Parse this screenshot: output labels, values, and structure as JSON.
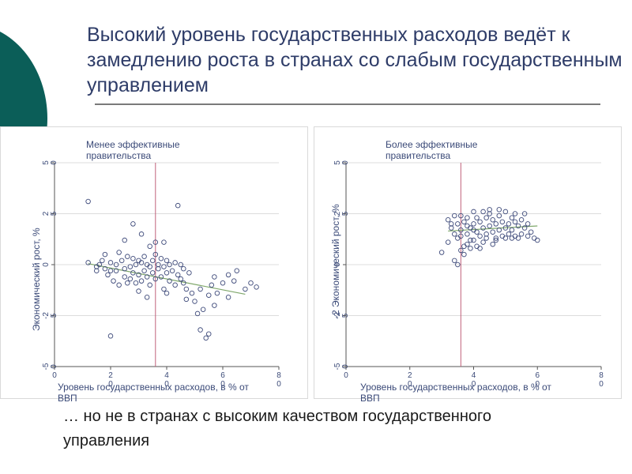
{
  "slide": {
    "title": "Высокий уровень государственных расходов ведёт к замедлению роста в странах со слабым государственным управлением",
    "footer": "… но не в странах с высоким качеством государственного управления",
    "colors": {
      "title": "#2e3c68",
      "teal_dark": "#0b5e58",
      "teal_light": "#8fc7c3",
      "marker": "#3e4a7a",
      "vline": "#c0607a",
      "fit_line": "#7ea76a"
    }
  },
  "chart_data": [
    {
      "type": "scatter",
      "panel_label": "Менее эффективные\nправительства",
      "xlabel": "Уровень государственных расходов, в % от\nВВП",
      "ylabel": "Экономический рост,\n%",
      "x_ticks": [
        "0",
        "2\n0",
        "4\n0",
        "6\n0",
        "8\n0"
      ],
      "y_ticks": [
        "-5\n0",
        "-2\n5",
        "0",
        "2\n5",
        "5\n0"
      ],
      "xlim": [
        0,
        80
      ],
      "ylim": [
        -50,
        50
      ],
      "grid": true,
      "vline_x": 36,
      "fit_line": [
        [
          12,
          0.5
        ],
        [
          68,
          -14.5
        ]
      ],
      "points": [
        [
          12,
          31
        ],
        [
          12,
          1
        ],
        [
          15,
          -1
        ],
        [
          16,
          0
        ],
        [
          17,
          2
        ],
        [
          18,
          -2
        ],
        [
          19,
          -5
        ],
        [
          20,
          1
        ],
        [
          20,
          -3
        ],
        [
          21,
          -8
        ],
        [
          22,
          0
        ],
        [
          22,
          -3
        ],
        [
          23,
          -10
        ],
        [
          24,
          2
        ],
        [
          25,
          -2
        ],
        [
          25,
          -6
        ],
        [
          26,
          4
        ],
        [
          27,
          -1
        ],
        [
          27,
          -7
        ],
        [
          28,
          3
        ],
        [
          28,
          -4
        ],
        [
          29,
          0
        ],
        [
          29,
          -9
        ],
        [
          30,
          2
        ],
        [
          30,
          -5
        ],
        [
          31,
          1
        ],
        [
          31,
          -8
        ],
        [
          32,
          4
        ],
        [
          32,
          -3
        ],
        [
          33,
          0
        ],
        [
          33,
          -6
        ],
        [
          34,
          -1
        ],
        [
          34,
          -10
        ],
        [
          35,
          2
        ],
        [
          35,
          -4
        ],
        [
          36,
          5
        ],
        [
          36,
          -7
        ],
        [
          37,
          0
        ],
        [
          37,
          -2
        ],
        [
          38,
          3
        ],
        [
          38,
          -6
        ],
        [
          39,
          -1
        ],
        [
          39,
          -12
        ],
        [
          40,
          2
        ],
        [
          40,
          -4
        ],
        [
          41,
          0
        ],
        [
          41,
          -8
        ],
        [
          42,
          -3
        ],
        [
          43,
          1
        ],
        [
          43,
          -10
        ],
        [
          44,
          -5
        ],
        [
          45,
          0
        ],
        [
          45,
          -7
        ],
        [
          46,
          -9
        ],
        [
          46,
          -2
        ],
        [
          47,
          -12
        ],
        [
          48,
          -4
        ],
        [
          49,
          -14
        ],
        [
          50,
          -18
        ],
        [
          51,
          -24
        ],
        [
          52,
          -32
        ],
        [
          53,
          -22
        ],
        [
          54,
          -36
        ],
        [
          55,
          -34
        ],
        [
          55,
          -15
        ],
        [
          56,
          -10
        ],
        [
          57,
          -20
        ],
        [
          58,
          -14
        ],
        [
          60,
          -9
        ],
        [
          62,
          -16
        ],
        [
          64,
          -8
        ],
        [
          68,
          -12
        ],
        [
          70,
          -9
        ],
        [
          72,
          -11
        ],
        [
          20,
          -35
        ],
        [
          23,
          6
        ],
        [
          30,
          -13
        ],
        [
          33,
          -16
        ],
        [
          44,
          29
        ],
        [
          28,
          20
        ],
        [
          39,
          11
        ],
        [
          25,
          12
        ],
        [
          15,
          -3
        ],
        [
          18,
          5
        ],
        [
          36,
          11
        ],
        [
          26,
          -9
        ],
        [
          40,
          -14
        ],
        [
          47,
          -17
        ],
        [
          52,
          -12
        ],
        [
          57,
          -6
        ],
        [
          62,
          -5
        ],
        [
          65,
          -3
        ],
        [
          31,
          15
        ],
        [
          34,
          9
        ]
      ]
    },
    {
      "type": "scatter",
      "panel_label": "Более эффективные\nправительства",
      "xlabel": "Уровень государственных расходов, в % от\nВВП",
      "ylabel": "-2 Экономический рост, %",
      "x_ticks": [
        "0",
        "2\n0",
        "4\n0",
        "6\n0",
        "8\n0"
      ],
      "y_ticks": [
        "-5\n0",
        "-2\n5",
        "0",
        "2\n5",
        "5\n0"
      ],
      "xlim": [
        0,
        80
      ],
      "ylim": [
        -50,
        50
      ],
      "grid": true,
      "vline_x": 36,
      "fit_line": [
        [
          32,
          16.5
        ],
        [
          60,
          19
        ]
      ],
      "points": [
        [
          30,
          6
        ],
        [
          32,
          11
        ],
        [
          32,
          22
        ],
        [
          33,
          18
        ],
        [
          34,
          15
        ],
        [
          34,
          24
        ],
        [
          35,
          20
        ],
        [
          35,
          13
        ],
        [
          36,
          17
        ],
        [
          36,
          24
        ],
        [
          37,
          21
        ],
        [
          37,
          9
        ],
        [
          38,
          15
        ],
        [
          38,
          23
        ],
        [
          39,
          18
        ],
        [
          39,
          12
        ],
        [
          40,
          20
        ],
        [
          40,
          26
        ],
        [
          41,
          16
        ],
        [
          41,
          23
        ],
        [
          42,
          14
        ],
        [
          42,
          21
        ],
        [
          43,
          18
        ],
        [
          43,
          11
        ],
        [
          44,
          23
        ],
        [
          44,
          15
        ],
        [
          45,
          19
        ],
        [
          45,
          25
        ],
        [
          46,
          16
        ],
        [
          46,
          22
        ],
        [
          47,
          13
        ],
        [
          47,
          20
        ],
        [
          48,
          24
        ],
        [
          48,
          17
        ],
        [
          49,
          21
        ],
        [
          49,
          14
        ],
        [
          50,
          18
        ],
        [
          50,
          26
        ],
        [
          51,
          20
        ],
        [
          51,
          15
        ],
        [
          52,
          23
        ],
        [
          52,
          17
        ],
        [
          53,
          21
        ],
        [
          53,
          25
        ],
        [
          54,
          19
        ],
        [
          55,
          22
        ],
        [
          55,
          15
        ],
        [
          56,
          18
        ],
        [
          57,
          20
        ],
        [
          58,
          16
        ],
        [
          59,
          13
        ],
        [
          60,
          12
        ],
        [
          36,
          7
        ],
        [
          38,
          10
        ],
        [
          41,
          9
        ],
        [
          44,
          13
        ],
        [
          47,
          12
        ],
        [
          50,
          13
        ],
        [
          53,
          14
        ],
        [
          57,
          14
        ],
        [
          34,
          2
        ],
        [
          35,
          0
        ],
        [
          37,
          5
        ],
        [
          39,
          8
        ],
        [
          33,
          20
        ],
        [
          36,
          14
        ],
        [
          40,
          12
        ],
        [
          42,
          8
        ],
        [
          46,
          10
        ],
        [
          52,
          13
        ],
        [
          54,
          13
        ],
        [
          56,
          25
        ],
        [
          48,
          27
        ],
        [
          45,
          27
        ],
        [
          43,
          26
        ],
        [
          40,
          17
        ],
        [
          38,
          19
        ]
      ]
    }
  ]
}
